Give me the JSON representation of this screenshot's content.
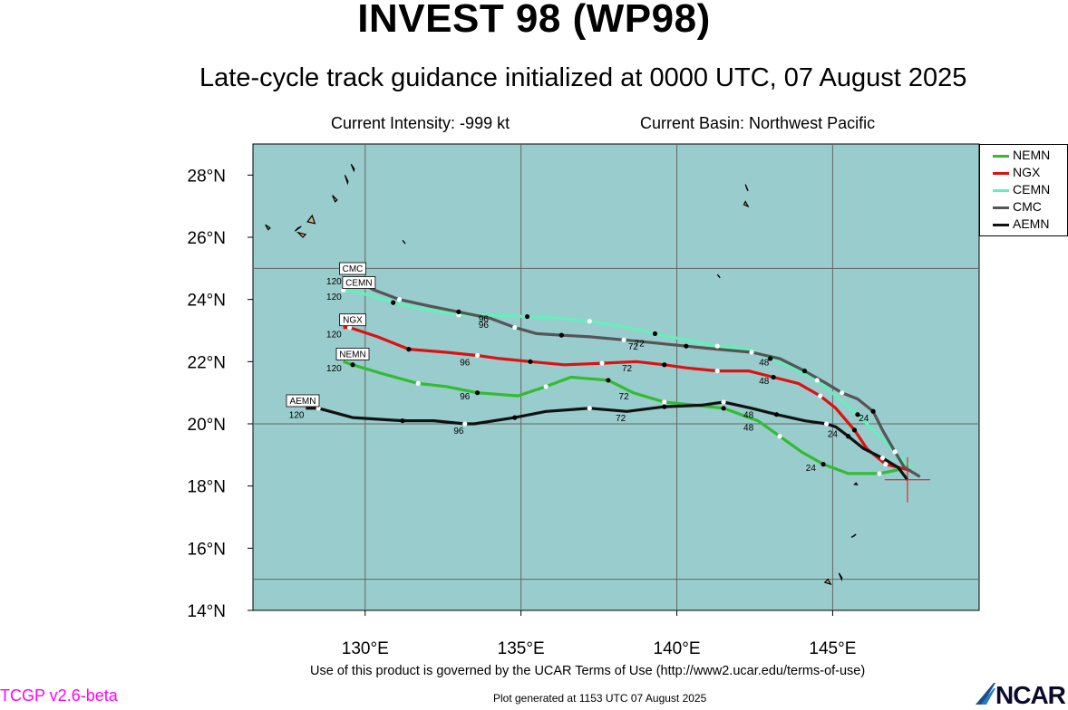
{
  "header": {
    "title": "INVEST 98 (WP98)",
    "subtitle": "Late-cycle track guidance initialized at 0000 UTC, 07 August 2025",
    "intensity": "Current Intensity: -999 kt",
    "basin": "Current Basin: Northwest Pacific"
  },
  "map": {
    "lon_range": [
      126.4,
      149.7
    ],
    "lat_range": [
      14,
      29
    ],
    "ocean_color": "#99cccc",
    "lon_ticks": [
      "130°E",
      "135°E",
      "140°E",
      "145°E"
    ],
    "lat_ticks": [
      "14°N",
      "16°N",
      "18°N",
      "20°N",
      "22°N",
      "24°N",
      "26°N",
      "28°N"
    ],
    "storm_position": {
      "lon": 147.4,
      "lat": 18.2
    }
  },
  "chart_data": {
    "type": "line",
    "series": [
      {
        "name": "NEMN",
        "color": "#33bb33",
        "points": [
          [
            147.4,
            18.6
          ],
          [
            147.0,
            18.5
          ],
          [
            146.5,
            18.4
          ],
          [
            145.5,
            18.4
          ],
          [
            144.7,
            18.7
          ],
          [
            144.0,
            19.1
          ],
          [
            143.3,
            19.6
          ],
          [
            142.6,
            20.1
          ],
          [
            141.5,
            20.5
          ],
          [
            140.6,
            20.6
          ],
          [
            139.6,
            20.7
          ],
          [
            138.6,
            21.0
          ],
          [
            137.8,
            21.4
          ],
          [
            136.6,
            21.5
          ],
          [
            135.8,
            21.2
          ],
          [
            134.9,
            20.9
          ],
          [
            133.6,
            21.0
          ],
          [
            132.6,
            21.2
          ],
          [
            131.7,
            21.3
          ],
          [
            130.6,
            21.6
          ],
          [
            129.6,
            21.9
          ],
          [
            129.3,
            22.0
          ]
        ],
        "labels": [
          {
            "lon": 144.3,
            "lat": 18.6,
            "text": "24"
          },
          {
            "lon": 142.3,
            "lat": 19.9,
            "text": "48"
          },
          {
            "lon": 138.3,
            "lat": 20.9,
            "text": "72"
          },
          {
            "lon": 133.2,
            "lat": 20.9,
            "text": "96"
          },
          {
            "lon": 129.0,
            "lat": 21.8,
            "text": "120"
          }
        ]
      },
      {
        "name": "NGX",
        "color": "#dd1111",
        "points": [
          [
            147.5,
            18.5
          ],
          [
            147.1,
            18.6
          ],
          [
            146.7,
            18.7
          ],
          [
            146.1,
            19.2
          ],
          [
            145.7,
            19.8
          ],
          [
            145.1,
            20.5
          ],
          [
            144.6,
            20.9
          ],
          [
            143.9,
            21.3
          ],
          [
            143.1,
            21.5
          ],
          [
            142.3,
            21.7
          ],
          [
            141.3,
            21.7
          ],
          [
            140.3,
            21.8
          ],
          [
            139.6,
            21.9
          ],
          [
            138.7,
            22.0
          ],
          [
            137.6,
            21.95
          ],
          [
            136.4,
            21.9
          ],
          [
            135.3,
            22.0
          ],
          [
            134.3,
            22.1
          ],
          [
            133.6,
            22.2
          ],
          [
            132.6,
            22.3
          ],
          [
            131.4,
            22.4
          ],
          [
            130.4,
            22.8
          ],
          [
            129.5,
            23.1
          ],
          [
            129.3,
            23.1
          ]
        ],
        "labels": [
          {
            "lon": 142.8,
            "lat": 21.4,
            "text": "48"
          },
          {
            "lon": 138.4,
            "lat": 21.8,
            "text": "72"
          },
          {
            "lon": 133.2,
            "lat": 22.0,
            "text": "96"
          },
          {
            "lon": 129.0,
            "lat": 22.9,
            "text": "120"
          }
        ]
      },
      {
        "name": "CEMN",
        "color": "#66eebb",
        "points": [
          [
            147.6,
            18.6
          ],
          [
            147.3,
            18.8
          ],
          [
            147.0,
            19.1
          ],
          [
            146.4,
            19.7
          ],
          [
            145.8,
            20.3
          ],
          [
            145.1,
            20.9
          ],
          [
            144.5,
            21.4
          ],
          [
            143.7,
            21.8
          ],
          [
            143.0,
            22.1
          ],
          [
            142.3,
            22.4
          ],
          [
            141.3,
            22.5
          ],
          [
            140.3,
            22.7
          ],
          [
            139.3,
            22.9
          ],
          [
            138.4,
            23.1
          ],
          [
            137.2,
            23.3
          ],
          [
            136.2,
            23.4
          ],
          [
            135.2,
            23.45
          ],
          [
            134.0,
            23.5
          ],
          [
            133.0,
            23.5
          ],
          [
            131.8,
            23.7
          ],
          [
            130.9,
            23.9
          ],
          [
            129.9,
            24.2
          ],
          [
            129.3,
            24.3
          ]
        ],
        "labels": [
          {
            "lon": 142.8,
            "lat": 22.0,
            "text": "48"
          },
          {
            "lon": 138.8,
            "lat": 22.6,
            "text": "72"
          },
          {
            "lon": 133.8,
            "lat": 23.4,
            "text": "96"
          },
          {
            "lon": 129.0,
            "lat": 24.1,
            "text": "120"
          }
        ]
      },
      {
        "name": "CMC",
        "color": "#555555",
        "points": [
          [
            147.8,
            18.3
          ],
          [
            147.3,
            18.6
          ],
          [
            147.0,
            19.1
          ],
          [
            146.6,
            19.8
          ],
          [
            146.3,
            20.4
          ],
          [
            145.8,
            20.8
          ],
          [
            145.3,
            21.0
          ],
          [
            144.8,
            21.3
          ],
          [
            144.1,
            21.7
          ],
          [
            143.3,
            22.1
          ],
          [
            142.4,
            22.3
          ],
          [
            141.3,
            22.4
          ],
          [
            140.3,
            22.5
          ],
          [
            139.3,
            22.6
          ],
          [
            138.3,
            22.7
          ],
          [
            137.2,
            22.8
          ],
          [
            136.3,
            22.85
          ],
          [
            135.5,
            22.9
          ],
          [
            134.8,
            23.1
          ],
          [
            134.0,
            23.4
          ],
          [
            133.0,
            23.6
          ],
          [
            132.0,
            23.8
          ],
          [
            131.1,
            24.0
          ],
          [
            130.3,
            24.3
          ],
          [
            129.7,
            24.6
          ],
          [
            129.3,
            24.7
          ]
        ],
        "labels": [
          {
            "lon": 146.0,
            "lat": 20.2,
            "text": "24"
          },
          {
            "lon": 138.6,
            "lat": 22.5,
            "text": "72"
          },
          {
            "lon": 133.8,
            "lat": 23.2,
            "text": "96"
          },
          {
            "lon": 129.0,
            "lat": 24.6,
            "text": "120"
          }
        ]
      },
      {
        "name": "AEMN",
        "color": "#111111",
        "points": [
          [
            147.4,
            18.2
          ],
          [
            147.1,
            18.6
          ],
          [
            146.6,
            18.9
          ],
          [
            146.0,
            19.2
          ],
          [
            145.5,
            19.6
          ],
          [
            145.1,
            19.9
          ],
          [
            144.8,
            20.0
          ],
          [
            144.1,
            20.1
          ],
          [
            143.2,
            20.3
          ],
          [
            142.4,
            20.5
          ],
          [
            141.5,
            20.7
          ],
          [
            140.8,
            20.6
          ],
          [
            139.6,
            20.55
          ],
          [
            138.4,
            20.4
          ],
          [
            137.2,
            20.5
          ],
          [
            135.8,
            20.4
          ],
          [
            134.8,
            20.2
          ],
          [
            133.5,
            20.0
          ],
          [
            133.2,
            20.0
          ],
          [
            132.2,
            20.1
          ],
          [
            131.2,
            20.1
          ],
          [
            129.6,
            20.2
          ],
          [
            128.5,
            20.5
          ],
          [
            128.1,
            20.5
          ]
        ],
        "labels": [
          {
            "lon": 145.0,
            "lat": 19.7,
            "text": "24"
          },
          {
            "lon": 142.3,
            "lat": 20.3,
            "text": "48"
          },
          {
            "lon": 138.2,
            "lat": 20.2,
            "text": "72"
          },
          {
            "lon": 133.0,
            "lat": 19.8,
            "text": "96"
          },
          {
            "lon": 127.8,
            "lat": 20.3,
            "text": "120"
          }
        ]
      }
    ],
    "endpoint_tags": [
      {
        "text": "CMC",
        "lon": 129.6,
        "lat": 24.95
      },
      {
        "text": "CEMN",
        "lon": 129.8,
        "lat": 24.5
      },
      {
        "text": "NGX",
        "lon": 129.6,
        "lat": 23.3
      },
      {
        "text": "NEMN",
        "lon": 129.6,
        "lat": 22.2
      },
      {
        "text": "AEMN",
        "lon": 128.0,
        "lat": 20.7
      }
    ]
  },
  "legend": {
    "items": [
      {
        "label": "NEMN",
        "color": "#33bb33"
      },
      {
        "label": "NGX",
        "color": "#dd1111"
      },
      {
        "label": "CEMN",
        "color": "#66eebb"
      },
      {
        "label": "CMC",
        "color": "#555555"
      },
      {
        "label": "AEMN",
        "color": "#111111"
      }
    ]
  },
  "footer": {
    "terms": "Use of this product is governed by the UCAR Terms of Use (http://www2.ucar.edu/terms-of-use)",
    "generated": "Plot generated at 1153 UTC   07 August 2025",
    "version": "TCGP v2.6-beta",
    "logo_text": "NCAR"
  }
}
